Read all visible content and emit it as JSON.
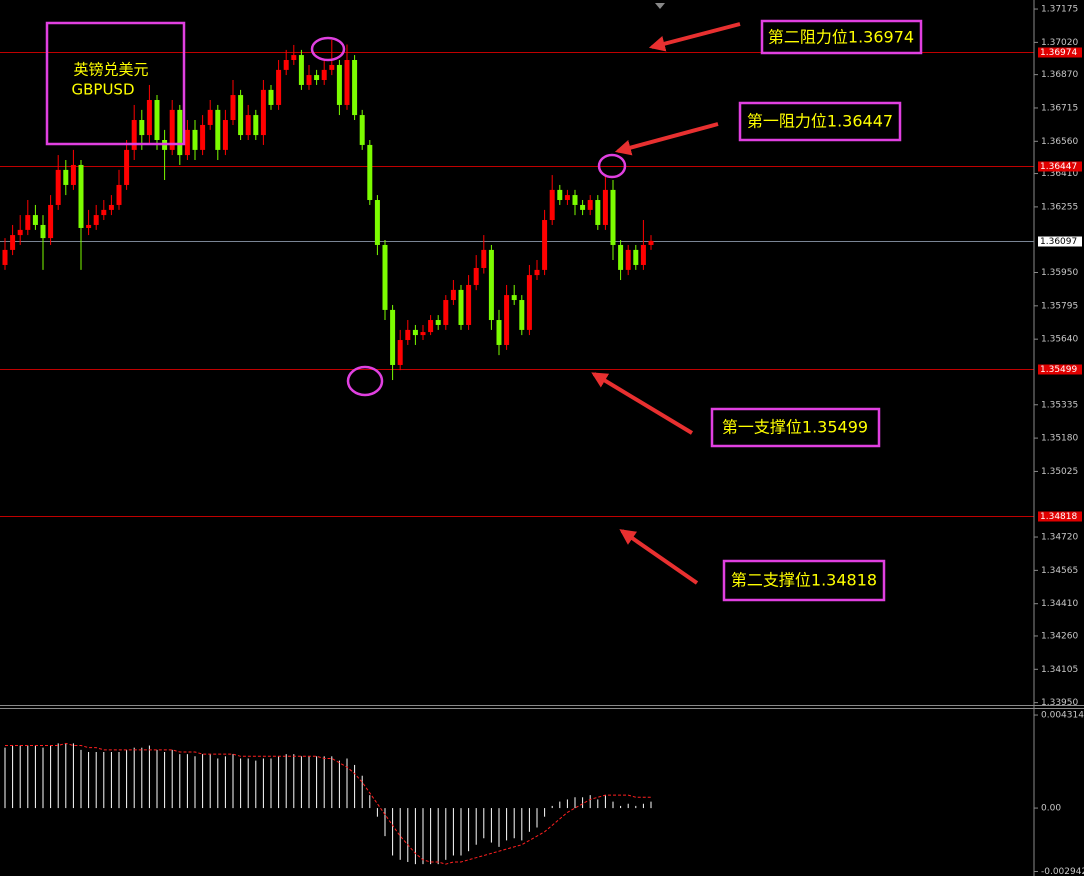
{
  "chart_data": [
    {
      "type": "candlestick",
      "title": "英镑兑美元",
      "subtitle": "GBPUSD",
      "up_color": "#ff0000",
      "down_color": "#7cfc00",
      "ylim": [
        1.33939,
        1.37217
      ],
      "yticks": [
        1.37175,
        {
          "value": 1.3702,
          "label": "1.37020"
        },
        {
          "value": 1.3687,
          "label": "1.36870"
        },
        1.36715,
        {
          "value": 1.3656,
          "label": "1.36560"
        },
        {
          "value": 1.3641,
          "label": "1.36410"
        },
        1.36255,
        {
          "value": 1.3595,
          "label": "1.35950"
        },
        1.35795,
        {
          "value": 1.3564,
          "label": "1.35640"
        },
        1.35335,
        {
          "value": 1.3518,
          "label": "1.35180"
        },
        1.35025,
        {
          "value": 1.3472,
          "label": "1.34720"
        },
        1.34565,
        {
          "value": 1.3441,
          "label": "1.34410"
        },
        {
          "value": 1.3426,
          "label": "1.34260"
        },
        1.34105,
        {
          "value": 1.3395,
          "label": "1.33950"
        }
      ],
      "levels": [
        {
          "value": 1.36974,
          "color": "#c00000"
        },
        {
          "value": 1.36447,
          "color": "#c00000"
        },
        {
          "value": 1.36097,
          "color": "#7a8595"
        },
        {
          "value": 1.35499,
          "color": "#c00000"
        },
        {
          "value": 1.34818,
          "color": "#c00000"
        }
      ],
      "annotations": [
        "第二阻力位1.36974",
        "第一阻力位1.36447",
        "第一支撑位1.35499",
        "第二支撑位1.34818"
      ],
      "open": [
        1.35985,
        1.36055,
        1.36124,
        1.36148,
        1.36217,
        1.36171,
        1.3611,
        1.36264,
        1.36427,
        1.36357,
        1.3645,
        1.36157,
        1.36171,
        1.36217,
        1.36241,
        1.36264,
        1.36357,
        1.3652,
        1.36659,
        1.36589,
        1.36752,
        1.36566,
        1.3652,
        1.36706,
        1.36496,
        1.36613,
        1.3652,
        1.36636,
        1.36706,
        1.3652,
        1.36659,
        1.36775,
        1.36589,
        1.36682,
        1.36589,
        1.36799,
        1.36729,
        1.36892,
        1.36938,
        1.36961,
        1.36822,
        1.36868,
        1.36845,
        1.36892,
        1.36915,
        1.36729,
        1.36938,
        1.36682,
        1.36543,
        1.36287,
        1.36078,
        1.35776,
        1.3552,
        1.35636,
        1.35683,
        1.35659,
        1.35673,
        1.35729,
        1.35706,
        1.35822,
        1.35869,
        1.35706,
        1.35892,
        1.35971,
        1.36055,
        1.35729,
        1.35613,
        1.35845,
        1.35822,
        1.35683,
        1.35938,
        1.35962,
        1.36194,
        1.36334,
        1.36287,
        1.3631,
        1.36264,
        1.36241,
        1.36287,
        1.36171,
        1.36334,
        1.36078,
        1.35962,
        1.36055,
        1.35985,
        1.36078
      ],
      "high": [
        1.3611,
        1.36171,
        1.36217,
        1.36287,
        1.36264,
        1.36217,
        1.3631,
        1.36496,
        1.36473,
        1.3652,
        1.36473,
        1.36241,
        1.36264,
        1.36287,
        1.3631,
        1.36427,
        1.36566,
        1.36729,
        1.36706,
        1.36822,
        1.36775,
        1.36613,
        1.36752,
        1.36729,
        1.36659,
        1.36659,
        1.36682,
        1.36752,
        1.36729,
        1.36706,
        1.36845,
        1.36799,
        1.36729,
        1.36706,
        1.36845,
        1.36822,
        1.36938,
        1.36985,
        1.37008,
        1.36985,
        1.36915,
        1.36892,
        1.36938,
        1.37031,
        1.36938,
        1.3701,
        1.36961,
        1.36706,
        1.36566,
        1.3631,
        1.36101,
        1.35799,
        1.35683,
        1.35729,
        1.35706,
        1.35706,
        1.35752,
        1.35752,
        1.35845,
        1.35915,
        1.35892,
        1.35938,
        1.36031,
        1.36124,
        1.36078,
        1.35776,
        1.35892,
        1.35892,
        1.35845,
        1.35985,
        1.36008,
        1.36241,
        1.36403,
        1.36357,
        1.36334,
        1.36334,
        1.36287,
        1.3631,
        1.3631,
        1.36403,
        1.3638,
        1.36101,
        1.36078,
        1.36078,
        1.36194,
        1.36124
      ],
      "low": [
        1.35962,
        1.36031,
        1.36078,
        1.36124,
        1.36148,
        1.35962,
        1.36078,
        1.36241,
        1.3631,
        1.36334,
        1.35962,
        1.36124,
        1.36148,
        1.36194,
        1.36217,
        1.36241,
        1.36334,
        1.36473,
        1.3652,
        1.36543,
        1.3652,
        1.3638,
        1.36496,
        1.3645,
        1.36473,
        1.36473,
        1.36496,
        1.36613,
        1.36473,
        1.36496,
        1.36636,
        1.36566,
        1.36566,
        1.36566,
        1.36543,
        1.36706,
        1.36706,
        1.36868,
        1.36915,
        1.36799,
        1.36799,
        1.36822,
        1.36822,
        1.36868,
        1.36682,
        1.36706,
        1.36659,
        1.3652,
        1.36264,
        1.36031,
        1.35729,
        1.3545,
        1.35496,
        1.35613,
        1.35613,
        1.35636,
        1.35659,
        1.35683,
        1.35683,
        1.35799,
        1.35683,
        1.35683,
        1.35868,
        1.35945,
        1.35683,
        1.35566,
        1.3559,
        1.35799,
        1.35659,
        1.35659,
        1.35915,
        1.35938,
        1.36171,
        1.36264,
        1.36264,
        1.36217,
        1.36217,
        1.36217,
        1.36148,
        1.36148,
        1.36008,
        1.35915,
        1.35938,
        1.35962,
        1.35962,
        1.36055
      ],
      "close": [
        1.36055,
        1.36124,
        1.36148,
        1.36217,
        1.36171,
        1.3611,
        1.36264,
        1.36427,
        1.36357,
        1.3645,
        1.36157,
        1.36171,
        1.36217,
        1.36241,
        1.36264,
        1.36357,
        1.3652,
        1.36659,
        1.36589,
        1.36752,
        1.36566,
        1.3652,
        1.36706,
        1.36496,
        1.36613,
        1.3652,
        1.36636,
        1.36706,
        1.3652,
        1.36659,
        1.36775,
        1.36589,
        1.36682,
        1.36589,
        1.36799,
        1.36729,
        1.36892,
        1.36938,
        1.36961,
        1.36822,
        1.36868,
        1.36845,
        1.36892,
        1.36915,
        1.36729,
        1.36938,
        1.36682,
        1.36543,
        1.36287,
        1.36078,
        1.35776,
        1.3552,
        1.35636,
        1.35683,
        1.35659,
        1.35673,
        1.35729,
        1.35706,
        1.35822,
        1.35869,
        1.35706,
        1.35892,
        1.35971,
        1.36055,
        1.35729,
        1.35613,
        1.35845,
        1.35822,
        1.35683,
        1.35938,
        1.35962,
        1.36194,
        1.36334,
        1.36287,
        1.3631,
        1.36264,
        1.36241,
        1.36287,
        1.36171,
        1.36334,
        1.36078,
        1.35962,
        1.36055,
        1.35985,
        1.36078,
        1.36097
      ]
    },
    {
      "type": "macd",
      "hist_color": "#ffffff",
      "signal_color": "#ff2020",
      "ylim": [
        -0.00315,
        0.00464
      ],
      "yticks": [
        0.004314,
        {
          "value": 0,
          "label": "0.00"
        },
        -0.002942
      ],
      "histogram": [
        0.0028,
        0.0029,
        0.0029,
        0.0029,
        0.0029,
        0.0028,
        0.0029,
        0.003,
        0.003,
        0.003,
        0.0027,
        0.0026,
        0.0026,
        0.0026,
        0.0026,
        0.0026,
        0.0027,
        0.0028,
        0.0028,
        0.0029,
        0.0027,
        0.0026,
        0.0027,
        0.0025,
        0.0025,
        0.0024,
        0.0025,
        0.0025,
        0.0023,
        0.0024,
        0.0025,
        0.0023,
        0.0023,
        0.0022,
        0.0023,
        0.0023,
        0.0024,
        0.0025,
        0.0025,
        0.0024,
        0.0024,
        0.0024,
        0.0024,
        0.0024,
        0.0022,
        0.0023,
        0.002,
        0.0015,
        0.0006,
        -0.0004,
        -0.0013,
        -0.0022,
        -0.0024,
        -0.0025,
        -0.0026,
        -0.0026,
        -0.0026,
        -0.0026,
        -0.0024,
        -0.0022,
        -0.0022,
        -0.002,
        -0.0017,
        -0.0014,
        -0.0016,
        -0.0018,
        -0.0015,
        -0.0014,
        -0.0015,
        -0.0011,
        -0.0009,
        -0.0004,
        0.0001,
        0.0003,
        0.0004,
        0.0005,
        0.0005,
        0.0006,
        0.0004,
        0.0006,
        0.0003,
        0.0001,
        0.0002,
        0.0001,
        0.0002,
        0.0003
      ],
      "signal": [
        0.0029,
        0.0029,
        0.0029,
        0.0029,
        0.0029,
        0.0029,
        0.0029,
        0.0029,
        0.003,
        0.0029,
        0.0029,
        0.0028,
        0.0028,
        0.0027,
        0.0027,
        0.0027,
        0.0027,
        0.0027,
        0.0027,
        0.0027,
        0.0027,
        0.0027,
        0.0027,
        0.0026,
        0.0026,
        0.0026,
        0.0025,
        0.0025,
        0.0025,
        0.0025,
        0.0025,
        0.0024,
        0.0024,
        0.0024,
        0.0024,
        0.0024,
        0.0024,
        0.0024,
        0.0024,
        0.0024,
        0.0024,
        0.0024,
        0.0023,
        0.0023,
        0.0021,
        0.0019,
        0.0016,
        0.0012,
        0.0007,
        0.0002,
        -0.0003,
        -0.0008,
        -0.0013,
        -0.0017,
        -0.0021,
        -0.0024,
        -0.0025,
        -0.0025,
        -0.0026,
        -0.0025,
        -0.0025,
        -0.0024,
        -0.0023,
        -0.0022,
        -0.0021,
        -0.002,
        -0.0019,
        -0.0018,
        -0.0017,
        -0.0015,
        -0.0013,
        -0.0011,
        -0.0008,
        -0.0005,
        -0.0002,
        0.0,
        0.0002,
        0.0004,
        0.0005,
        0.0006,
        0.0006,
        0.0006,
        0.0006,
        0.0005,
        0.0005,
        0.0005
      ]
    }
  ]
}
